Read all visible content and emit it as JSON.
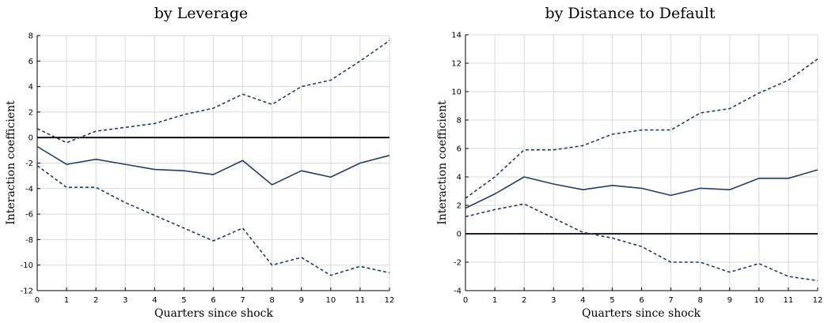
{
  "chart_data": [
    {
      "type": "line",
      "title": "by Leverage",
      "xlabel": "Quarters since shock",
      "ylabel": "Interaction coefficient",
      "x": [
        0,
        1,
        2,
        3,
        4,
        5,
        6,
        7,
        8,
        9,
        10,
        11,
        12
      ],
      "xlim": [
        0,
        12
      ],
      "ylim": [
        -12,
        8
      ],
      "yticks": [
        -12,
        -10,
        -8,
        -6,
        -4,
        -2,
        0,
        2,
        4,
        6,
        8
      ],
      "grid": true,
      "reference_line": 0,
      "series": [
        {
          "style": "dashed",
          "values": [
            0.7,
            -0.4,
            0.5,
            0.8,
            1.1,
            1.8,
            2.3,
            3.4,
            2.6,
            4.0,
            4.5,
            6.0,
            7.6
          ]
        },
        {
          "style": "solid",
          "values": [
            -0.7,
            -2.1,
            -1.7,
            -2.1,
            -2.5,
            -2.6,
            -2.9,
            -1.8,
            -3.7,
            -2.6,
            -3.1,
            -2.0,
            -1.4
          ]
        },
        {
          "style": "dashed",
          "values": [
            -2.2,
            -3.9,
            -3.9,
            -5.1,
            -6.1,
            -7.1,
            -8.1,
            -7.1,
            -10.0,
            -9.4,
            -10.8,
            -10.1,
            -10.6
          ]
        }
      ],
      "line_color": "#1f3f6b"
    },
    {
      "type": "line",
      "title": "by Distance to Default",
      "xlabel": "Quarters since shock",
      "ylabel": "Interaction coefficient",
      "x": [
        0,
        1,
        2,
        3,
        4,
        5,
        6,
        7,
        8,
        9,
        10,
        11,
        12
      ],
      "xlim": [
        0,
        12
      ],
      "ylim": [
        -4,
        14
      ],
      "yticks": [
        -4,
        -2,
        0,
        2,
        4,
        6,
        8,
        10,
        12,
        14
      ],
      "grid": true,
      "reference_line": 0,
      "series": [
        {
          "style": "dashed",
          "values": [
            2.5,
            4.0,
            5.9,
            5.9,
            6.2,
            7.0,
            7.3,
            7.3,
            8.5,
            8.8,
            9.9,
            10.8,
            12.3
          ]
        },
        {
          "style": "solid",
          "values": [
            1.8,
            2.8,
            4.0,
            3.5,
            3.1,
            3.4,
            3.2,
            2.7,
            3.2,
            3.1,
            3.9,
            3.9,
            4.5
          ]
        },
        {
          "style": "dashed",
          "values": [
            1.2,
            1.7,
            2.1,
            1.1,
            0.1,
            -0.3,
            -0.9,
            -2.0,
            -2.0,
            -2.7,
            -2.1,
            -3.0,
            -3.3
          ]
        }
      ],
      "line_color": "#1f3f6b"
    }
  ]
}
